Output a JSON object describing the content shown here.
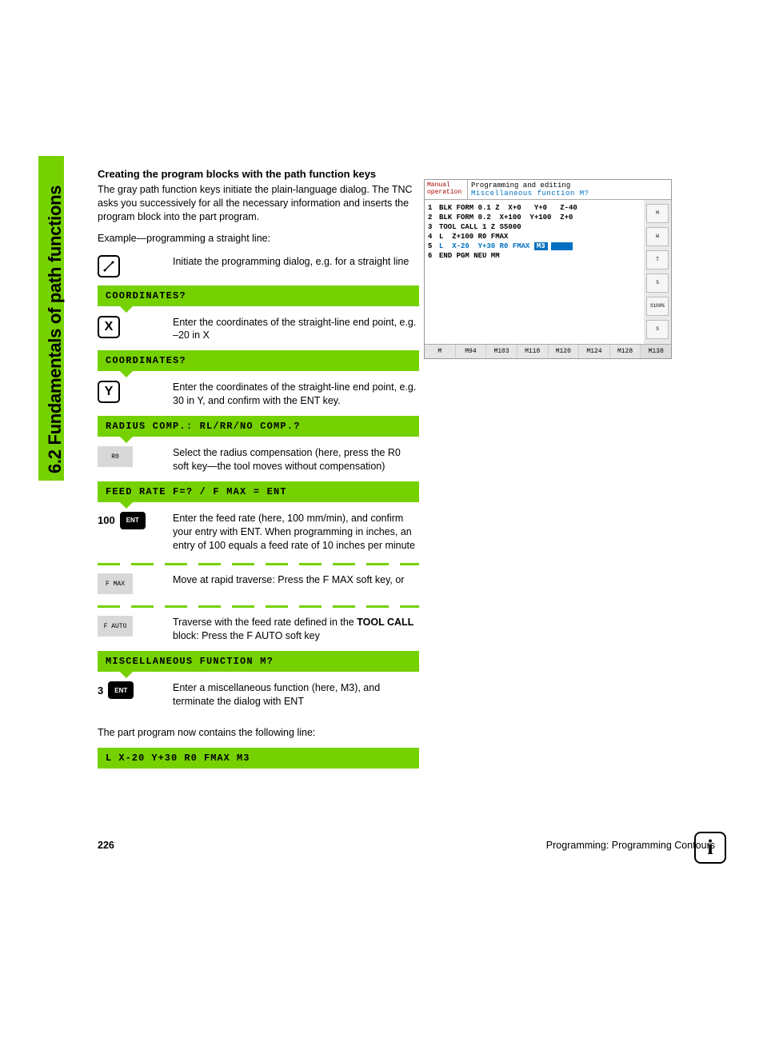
{
  "sidebar": {
    "title": "6.2 Fundamentals of path functions"
  },
  "heading": "Creating the program blocks with the path function keys",
  "intro": "The gray path function keys initiate the plain-language dialog. The TNC asks you successively for all the necessary information and inserts the program block into the part program.",
  "example_intro": "Example—programming a straight line:",
  "step_line": {
    "key_glyph": "↗",
    "desc": "Initiate the programming dialog, e.g. for a straight line"
  },
  "prompts": {
    "coord1": "COORDINATES?",
    "coord2": "COORDINATES?",
    "radius": "RADIUS COMP.: RL/RR/NO COMP.?",
    "feed": "FEED RATE F=? / F MAX = ENT",
    "misc": "MISCELLANEOUS FUNCTION M?"
  },
  "step_x": {
    "key": "X",
    "desc": "Enter the coordinates of the straight-line end point, e.g. –20 in X"
  },
  "step_y": {
    "key": "Y",
    "desc": "Enter the coordinates of the straight-line end point, e.g. 30 in Y, and confirm with the ENT key."
  },
  "step_r0": {
    "key": "R0",
    "desc": "Select the radius compensation (here, press the R0 soft key—the tool moves without compensation)"
  },
  "step_feed": {
    "val": "100",
    "ent": "ENT",
    "desc": "Enter the feed rate (here, 100 mm/min), and confirm your entry with ENT. When programming in inches, an entry of 100 equals a feed rate of 10 inches per minute"
  },
  "step_fmax": {
    "key": "F MAX",
    "desc": "Move at rapid traverse: Press the F MAX soft key, or"
  },
  "step_fauto": {
    "key": "F AUTO",
    "desc_a": "Traverse with the feed rate defined in the ",
    "bold": "TOOL CALL",
    "desc_b": " block: Press the F AUTO soft key"
  },
  "step_m": {
    "val": "3",
    "ent": "ENT",
    "desc": "Enter a miscellaneous function (here, M3), and terminate the dialog with ENT"
  },
  "result_intro": "The part program now contains the following line:",
  "result_code": "L X-20 Y+30 R0 FMAX M3",
  "footer": {
    "page": "226",
    "chapter": "Programming: Programming Contours"
  },
  "hmi": {
    "mode_l1": "Manual",
    "mode_l2": "operation",
    "title_l1": "Programming and editing",
    "title_l2": "Miscellaneous function M?",
    "lines": [
      {
        "n": "1",
        "txt": "BLK FORM 0.1 Z  X+0   Y+0   Z-40"
      },
      {
        "n": "2",
        "txt": "BLK FORM 0.2  X+100  Y+100  Z+0"
      },
      {
        "n": "3",
        "txt": "TOOL CALL 1 Z S5000"
      },
      {
        "n": "4",
        "txt": "L  Z+100 R0 FMAX"
      },
      {
        "n": "5",
        "txt_a": "L  X-20  Y+30 R0 FMAX ",
        "inv": "M3",
        "hl": true
      },
      {
        "n": "6",
        "txt": "END PGM NEU MM"
      }
    ],
    "side": [
      "M",
      "W",
      "T",
      "S",
      "S100%",
      "S"
    ],
    "bottom": [
      "M",
      "M94",
      "M103",
      "M118",
      "M120",
      "M124",
      "M128",
      "M138"
    ]
  }
}
